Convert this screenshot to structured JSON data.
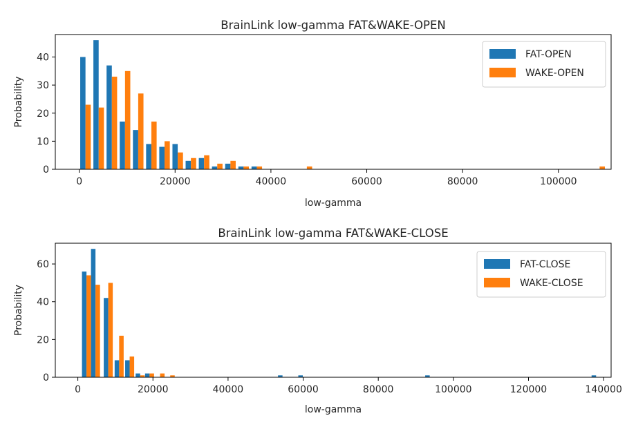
{
  "colors": {
    "series1": "#1f77b4",
    "series2": "#ff7f0e",
    "axis": "#000000",
    "legend_border": "#cccccc"
  },
  "chart_data": [
    {
      "type": "bar",
      "title": "BrainLink low-gamma FAT&WAKE-OPEN",
      "xlabel": "low-gamma",
      "ylabel": "Probability",
      "xlim": [
        -5000,
        111000
      ],
      "ylim": [
        0,
        48
      ],
      "xticks": [
        0,
        20000,
        40000,
        60000,
        80000,
        100000
      ],
      "xtick_labels": [
        "0",
        "20000",
        "40000",
        "60000",
        "80000",
        "100000"
      ],
      "yticks": [
        0,
        10,
        20,
        30,
        40
      ],
      "ytick_labels": [
        "0",
        "10",
        "20",
        "30",
        "40"
      ],
      "legend": {
        "position": "top-right",
        "entries": [
          "FAT-OPEN",
          "WAKE-OPEN"
        ]
      },
      "grid": false,
      "bin_width": 1100,
      "series": [
        {
          "name": "FAT-OPEN",
          "color": "#1f77b4",
          "x": [
            200,
            2950,
            5700,
            8450,
            11200,
            13950,
            16700,
            19450,
            22200,
            24950,
            27700,
            30450,
            33200,
            35950,
            47000,
            108000
          ],
          "values": [
            40,
            46,
            37,
            17,
            14,
            9,
            8,
            9,
            3,
            4,
            1,
            2,
            1,
            1,
            0,
            0
          ]
        },
        {
          "name": "WAKE-OPEN",
          "color": "#ff7f0e",
          "x": [
            1300,
            4050,
            6800,
            9550,
            12300,
            15050,
            17800,
            20550,
            23300,
            26050,
            28800,
            31550,
            34300,
            37050,
            47500,
            108600
          ],
          "values": [
            23,
            22,
            33,
            35,
            27,
            17,
            10,
            6,
            4,
            5,
            2,
            3,
            1,
            1,
            1,
            1
          ]
        }
      ]
    },
    {
      "type": "bar",
      "title": "BrainLink low-gamma FAT&WAKE-CLOSE",
      "xlabel": "low-gamma",
      "ylabel": "Probability",
      "xlim": [
        -6000,
        142000
      ],
      "ylim": [
        0,
        71
      ],
      "xticks": [
        0,
        20000,
        40000,
        60000,
        80000,
        100000,
        120000,
        140000
      ],
      "xtick_labels": [
        "0",
        "20000",
        "40000",
        "60000",
        "80000",
        "100000",
        "120000",
        "140000"
      ],
      "yticks": [
        0,
        20,
        40,
        60
      ],
      "ytick_labels": [
        "0",
        "20",
        "40",
        "60"
      ],
      "legend": {
        "position": "top-right",
        "entries": [
          "FAT-CLOSE",
          "WAKE-CLOSE"
        ]
      },
      "grid": false,
      "bin_width": 1200,
      "series": [
        {
          "name": "FAT-CLOSE",
          "color": "#1f77b4",
          "x": [
            1100,
            3500,
            6900,
            9800,
            12600,
            15400,
            17900,
            20700,
            23400,
            53300,
            58700,
            92500,
            136800
          ],
          "values": [
            56,
            68,
            42,
            9,
            9,
            2,
            2,
            0,
            0,
            1,
            1,
            1,
            1
          ]
        },
        {
          "name": "WAKE-CLOSE",
          "color": "#ff7f0e",
          "x": [
            2300,
            4700,
            8100,
            11000,
            13800,
            16600,
            19100,
            21900,
            24600,
            54500,
            59900,
            93700,
            138000
          ],
          "values": [
            54,
            49,
            50,
            22,
            11,
            1,
            2,
            2,
            1,
            0,
            0,
            0,
            0
          ]
        }
      ]
    }
  ]
}
